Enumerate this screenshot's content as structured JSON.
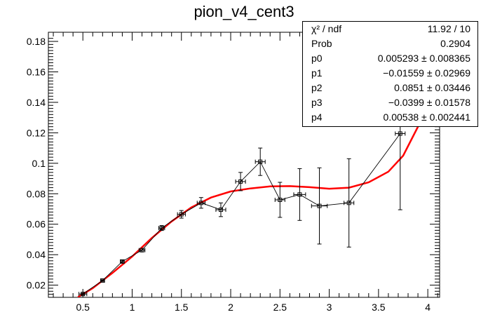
{
  "chart_data": {
    "type": "scatter",
    "title": "pion_v4_cent3",
    "xlabel": "",
    "ylabel": "",
    "xlim": [
      0.15,
      4.12
    ],
    "ylim": [
      0.012,
      0.186
    ],
    "xticks": [
      0.5,
      1,
      1.5,
      2,
      2.5,
      3,
      3.5,
      4
    ],
    "xtick_labels": [
      "0.5",
      "1",
      "1.5",
      "2",
      "2.5",
      "3",
      "3.5",
      "4"
    ],
    "yticks": [
      0.02,
      0.04,
      0.06,
      0.08,
      0.1,
      0.12,
      0.14,
      0.16,
      0.18
    ],
    "ytick_labels": [
      "0.02",
      "0.04",
      "0.06",
      "0.08",
      "0.1",
      "0.12",
      "0.14",
      "0.16",
      "0.18"
    ],
    "grid": false,
    "series": [
      {
        "name": "",
        "style": "points with error bars, connected by line",
        "color": "#000000",
        "points": [
          {
            "x": 0.5,
            "y": 0.0142,
            "xerr": 0.04,
            "yerr": 0.0005
          },
          {
            "x": 0.7,
            "y": 0.023,
            "xerr": 0.02,
            "yerr": 0.0005
          },
          {
            "x": 0.9,
            "y": 0.0355,
            "xerr": 0.02,
            "yerr": 0.0008
          },
          {
            "x": 1.1,
            "y": 0.043,
            "xerr": 0.03,
            "yerr": 0.0012
          },
          {
            "x": 1.3,
            "y": 0.0575,
            "xerr": 0.03,
            "yerr": 0.0016
          },
          {
            "x": 1.5,
            "y": 0.0665,
            "xerr": 0.04,
            "yerr": 0.0025
          },
          {
            "x": 1.7,
            "y": 0.074,
            "xerr": 0.04,
            "yerr": 0.0035
          },
          {
            "x": 1.9,
            "y": 0.0695,
            "xerr": 0.05,
            "yerr": 0.0045
          },
          {
            "x": 2.1,
            "y": 0.088,
            "xerr": 0.05,
            "yerr": 0.006
          },
          {
            "x": 2.3,
            "y": 0.101,
            "xerr": 0.05,
            "yerr": 0.009
          },
          {
            "x": 2.5,
            "y": 0.076,
            "xerr": 0.05,
            "yerr": 0.0115
          },
          {
            "x": 2.7,
            "y": 0.0795,
            "xerr": 0.06,
            "yerr": 0.017
          },
          {
            "x": 2.9,
            "y": 0.072,
            "xerr": 0.08,
            "yerr": 0.025
          },
          {
            "x": 3.2,
            "y": 0.074,
            "xerr": 0.05,
            "yerr": 0.029
          },
          {
            "x": 3.72,
            "y": 0.1195,
            "xerr": 0.05,
            "yerr": 0.05
          }
        ]
      },
      {
        "name": "",
        "style": "fit curve",
        "color": "#ff0000",
        "x": [
          0.45,
          0.6,
          0.8,
          1.0,
          1.2,
          1.4,
          1.6,
          1.8,
          2.0,
          2.2,
          2.4,
          2.6,
          2.8,
          3.0,
          3.2,
          3.4,
          3.6,
          3.75,
          3.9,
          4.02
        ],
        "y": [
          0.0122,
          0.018,
          0.028,
          0.0388,
          0.051,
          0.0618,
          0.071,
          0.0775,
          0.0815,
          0.0835,
          0.0848,
          0.085,
          0.0843,
          0.0833,
          0.084,
          0.0875,
          0.0945,
          0.105,
          0.124,
          0.143
        ]
      }
    ],
    "stats_box": {
      "position": "top-right",
      "rows": [
        {
          "name": "χ² / ndf",
          "value": "11.92 / 10"
        },
        {
          "name": "Prob",
          "value": "0.2904"
        },
        {
          "name": "p0",
          "value": "0.005293 ± 0.008365"
        },
        {
          "name": "p1",
          "value": "−0.01559 ± 0.02969"
        },
        {
          "name": "p2",
          "value": "0.0851 ± 0.03446"
        },
        {
          "name": "p3",
          "value": "−0.0399 ± 0.01578"
        },
        {
          "name": "p4",
          "value": "0.00538 ± 0.002441"
        }
      ]
    }
  }
}
